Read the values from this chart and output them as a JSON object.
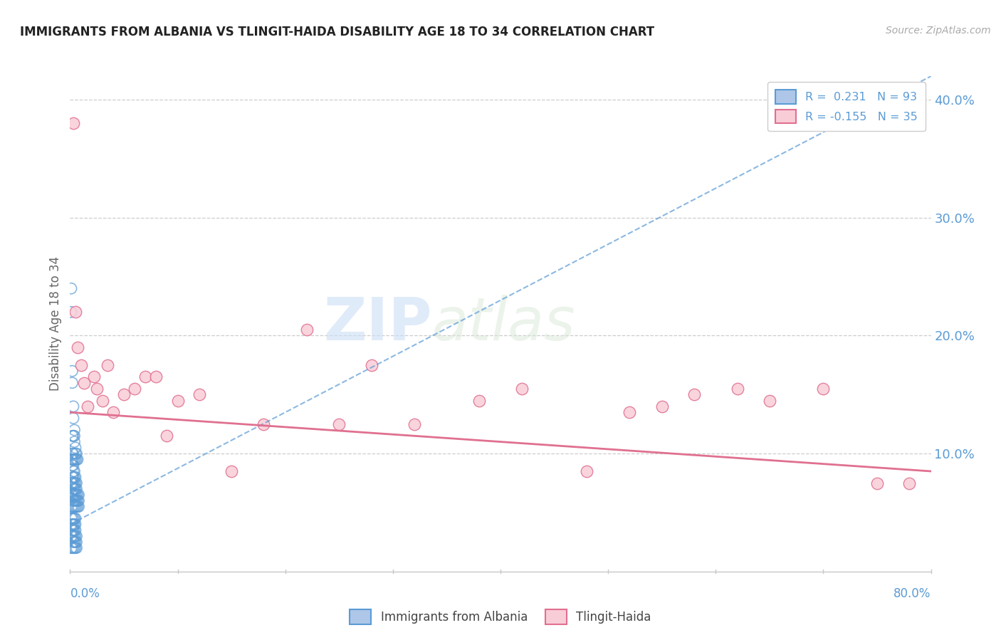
{
  "title": "IMMIGRANTS FROM ALBANIA VS TLINGIT-HAIDA DISABILITY AGE 18 TO 34 CORRELATION CHART",
  "source": "Source: ZipAtlas.com",
  "ylabel": "Disability Age 18 to 34",
  "xmin": 0.0,
  "xmax": 0.8,
  "ymin": 0.0,
  "ymax": 0.42,
  "yticks": [
    0.1,
    0.2,
    0.3,
    0.4
  ],
  "ytick_labels": [
    "10.0%",
    "20.0%",
    "30.0%",
    "40.0%"
  ],
  "legend_entries": [
    {
      "label": "R =  0.231   N = 93",
      "color_face": "#aec6e8",
      "color_edge": "#5b9bd5"
    },
    {
      "label": "R = -0.155   N = 35",
      "color_face": "#f9cdd8",
      "color_edge": "#e07090"
    }
  ],
  "legend_series": [
    {
      "name": "Immigrants from Albania",
      "color_face": "#aec6e8",
      "color_edge": "#5b9bd5"
    },
    {
      "name": "Tlingit-Haida",
      "color_face": "#f9cdd8",
      "color_edge": "#e07090"
    }
  ],
  "blue_scatter_x": [
    0.001,
    0.001,
    0.001,
    0.002,
    0.002,
    0.002,
    0.002,
    0.002,
    0.003,
    0.003,
    0.003,
    0.003,
    0.003,
    0.003,
    0.003,
    0.003,
    0.004,
    0.004,
    0.004,
    0.004,
    0.004,
    0.004,
    0.004,
    0.005,
    0.005,
    0.005,
    0.005,
    0.005,
    0.005,
    0.006,
    0.006,
    0.006,
    0.006,
    0.006,
    0.007,
    0.007,
    0.007,
    0.008,
    0.008,
    0.008,
    0.001,
    0.001,
    0.002,
    0.002,
    0.003,
    0.003,
    0.004,
    0.004,
    0.005,
    0.005,
    0.001,
    0.002,
    0.002,
    0.003,
    0.003,
    0.004,
    0.004,
    0.005,
    0.005,
    0.006,
    0.001,
    0.002,
    0.003,
    0.003,
    0.004,
    0.004,
    0.005,
    0.005,
    0.006,
    0.006,
    0.001,
    0.002,
    0.002,
    0.003,
    0.003,
    0.004,
    0.005,
    0.005,
    0.006,
    0.007,
    0.001,
    0.001,
    0.002,
    0.002,
    0.003,
    0.003,
    0.004,
    0.004,
    0.005,
    0.006,
    0.002,
    0.003,
    0.004
  ],
  "blue_scatter_y": [
    0.055,
    0.065,
    0.075,
    0.055,
    0.065,
    0.075,
    0.08,
    0.09,
    0.055,
    0.06,
    0.065,
    0.07,
    0.075,
    0.08,
    0.085,
    0.09,
    0.055,
    0.06,
    0.065,
    0.07,
    0.075,
    0.08,
    0.085,
    0.055,
    0.06,
    0.065,
    0.07,
    0.075,
    0.08,
    0.055,
    0.06,
    0.065,
    0.07,
    0.075,
    0.055,
    0.06,
    0.065,
    0.055,
    0.06,
    0.065,
    0.04,
    0.045,
    0.04,
    0.045,
    0.04,
    0.045,
    0.04,
    0.045,
    0.04,
    0.045,
    0.03,
    0.03,
    0.035,
    0.03,
    0.035,
    0.03,
    0.035,
    0.03,
    0.035,
    0.03,
    0.02,
    0.02,
    0.02,
    0.025,
    0.02,
    0.025,
    0.02,
    0.025,
    0.02,
    0.025,
    0.095,
    0.095,
    0.1,
    0.095,
    0.1,
    0.095,
    0.095,
    0.1,
    0.095,
    0.095,
    0.24,
    0.22,
    0.16,
    0.17,
    0.13,
    0.14,
    0.11,
    0.12,
    0.105,
    0.1,
    0.115,
    0.115,
    0.115
  ],
  "blue_trend_x": [
    0.0,
    0.8
  ],
  "blue_trend_y": [
    0.04,
    0.42
  ],
  "pink_scatter_x": [
    0.003,
    0.005,
    0.007,
    0.01,
    0.013,
    0.016,
    0.022,
    0.025,
    0.03,
    0.035,
    0.04,
    0.05,
    0.06,
    0.07,
    0.08,
    0.09,
    0.1,
    0.12,
    0.15,
    0.18,
    0.22,
    0.25,
    0.28,
    0.32,
    0.38,
    0.42,
    0.48,
    0.52,
    0.55,
    0.58,
    0.62,
    0.65,
    0.7,
    0.75,
    0.78
  ],
  "pink_scatter_y": [
    0.38,
    0.22,
    0.19,
    0.175,
    0.16,
    0.14,
    0.165,
    0.155,
    0.145,
    0.175,
    0.135,
    0.15,
    0.155,
    0.165,
    0.165,
    0.115,
    0.145,
    0.15,
    0.085,
    0.125,
    0.205,
    0.125,
    0.175,
    0.125,
    0.145,
    0.155,
    0.085,
    0.135,
    0.14,
    0.15,
    0.155,
    0.145,
    0.155,
    0.075,
    0.075
  ],
  "pink_trend_x": [
    0.0,
    0.8
  ],
  "pink_trend_y": [
    0.135,
    0.085
  ],
  "watermark_zip": "ZIP",
  "watermark_atlas": "atlas",
  "background_color": "#ffffff",
  "grid_color": "#c8c8c8",
  "title_color": "#222222",
  "blue_color": "#5b9bd5",
  "blue_face_color": "#aec6e8",
  "pink_color": "#e07090",
  "pink_face_color": "#f9cdd8",
  "tick_color": "#5b9bd5",
  "label_color": "#666666"
}
